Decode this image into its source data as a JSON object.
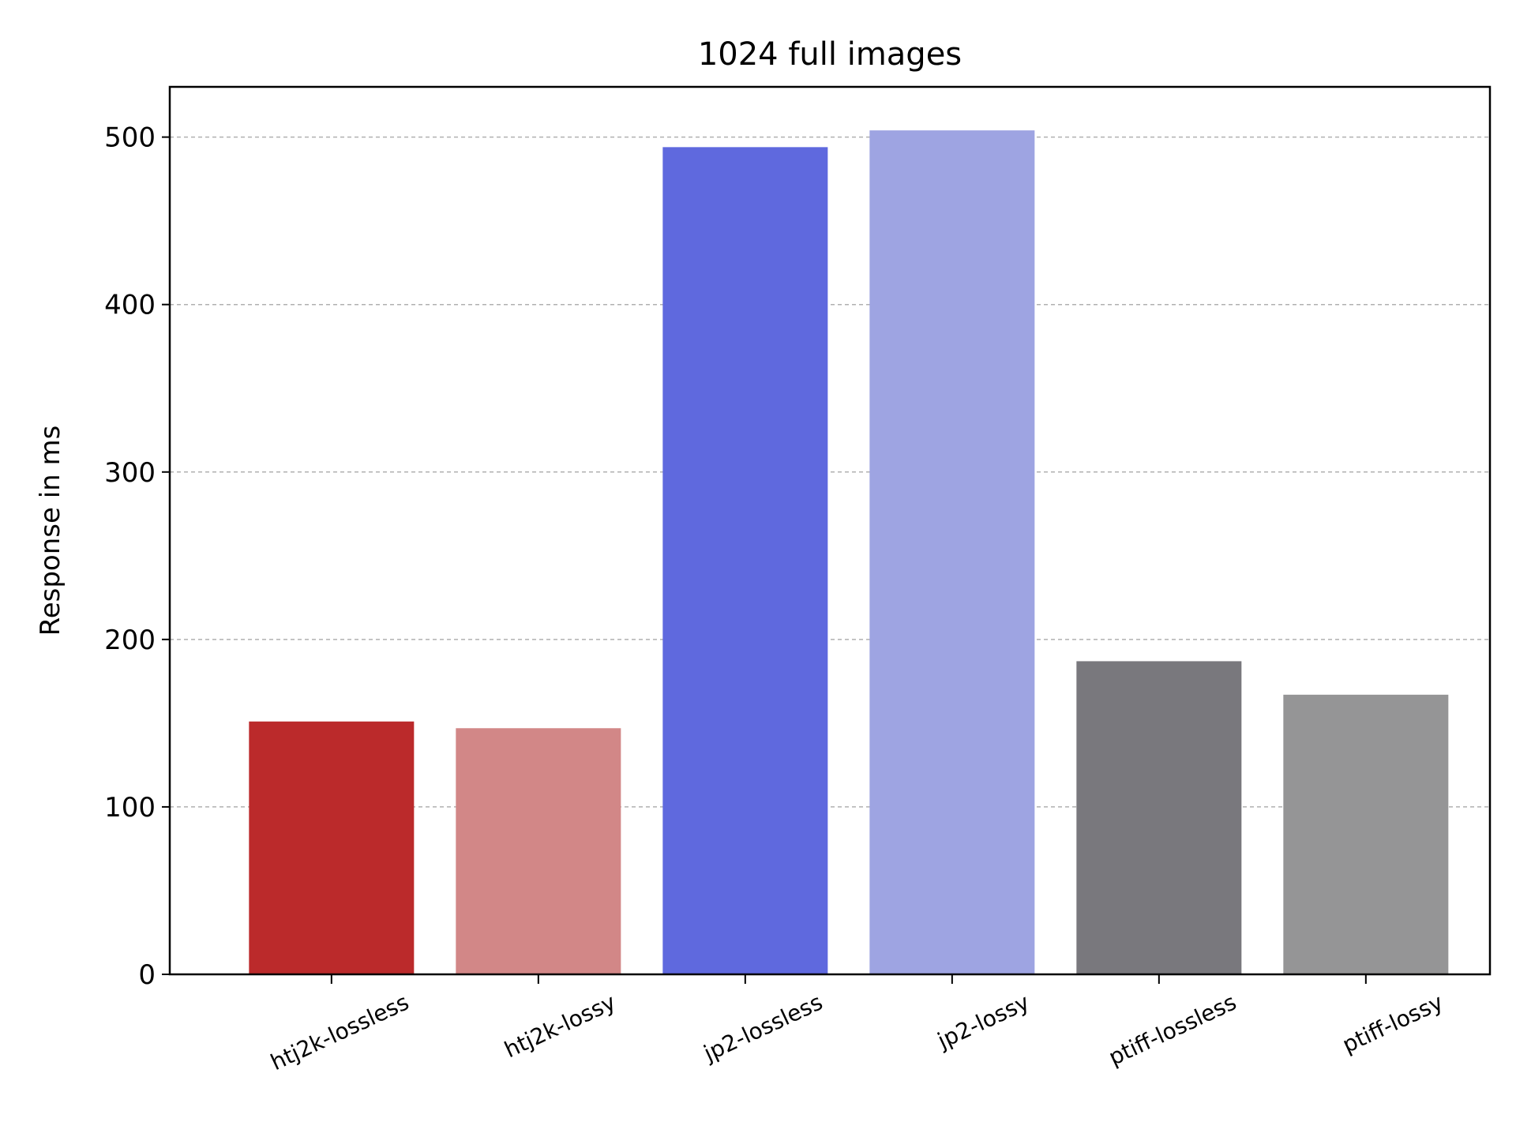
{
  "chart_data": {
    "type": "bar",
    "title": "1024 full images",
    "xlabel": "",
    "ylabel": "Response in ms",
    "categories": [
      "htj2k-lossless",
      "htj2k-lossy",
      "jp2-lossless",
      "jp2-lossy",
      "ptiff-lossless",
      "ptiff-lossy"
    ],
    "values": [
      151,
      147,
      494,
      504,
      187,
      167
    ],
    "colors": [
      "#bb2a2b",
      "#d28787",
      "#5f69de",
      "#9ea4e2",
      "#79787d",
      "#959596"
    ],
    "ylim": [
      0,
      530
    ],
    "yticks": [
      0,
      100,
      200,
      300,
      400,
      500
    ],
    "grid": "y-dashed",
    "legend": "none"
  }
}
